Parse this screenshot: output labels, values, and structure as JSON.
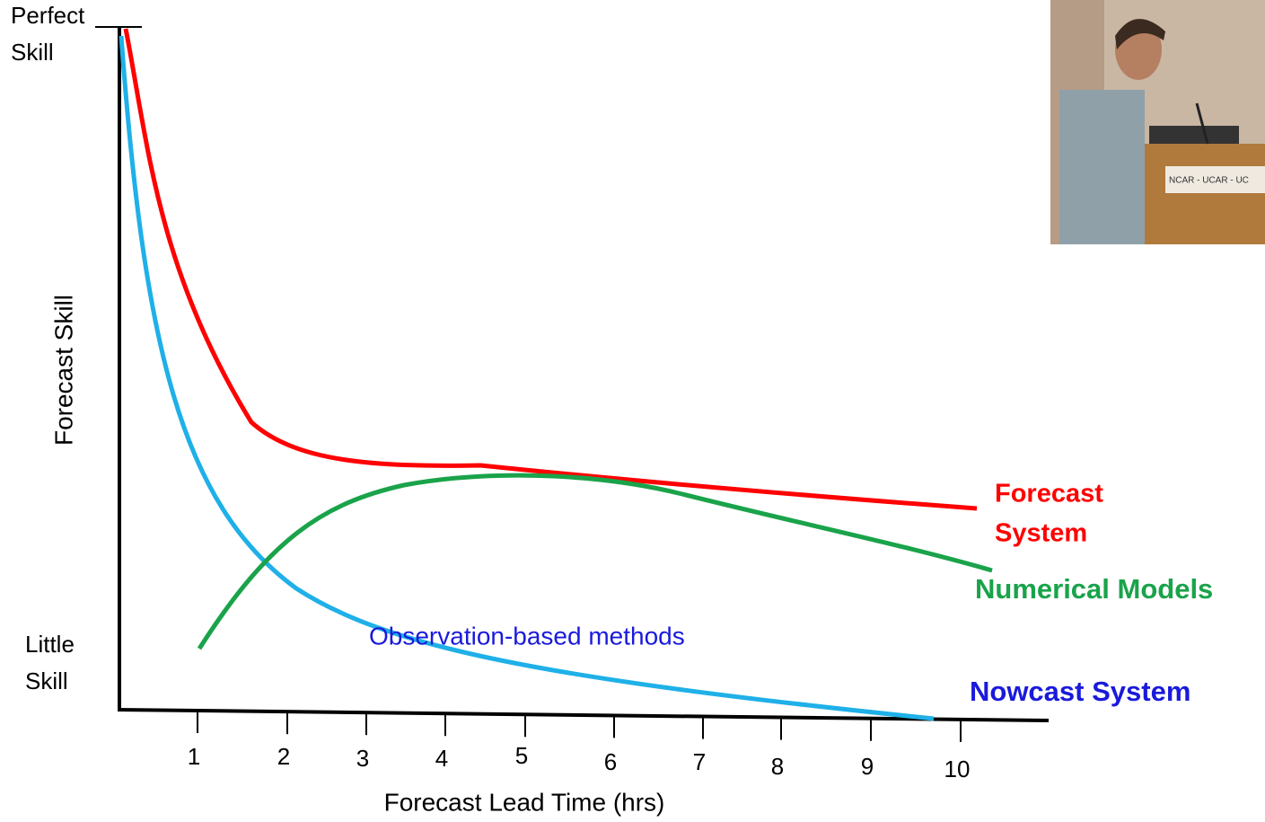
{
  "y_axis": {
    "label": "Forecast Skill",
    "top_label": [
      "Perfect",
      "Skill"
    ],
    "bottom_label": [
      "Little",
      "Skill"
    ]
  },
  "x_axis": {
    "label": "Forecast Lead Time (hrs)",
    "ticks": [
      1,
      2,
      3,
      4,
      5,
      6,
      7,
      8,
      9,
      10
    ]
  },
  "curves": {
    "forecast_system": [
      "Forecast",
      "System"
    ],
    "numerical_models": "Numerical Models",
    "observation_methods": "Observation-based methods",
    "nowcast_system": "Nowcast System"
  },
  "photo": {
    "sign": "NCAR - UCAR - UC"
  }
}
